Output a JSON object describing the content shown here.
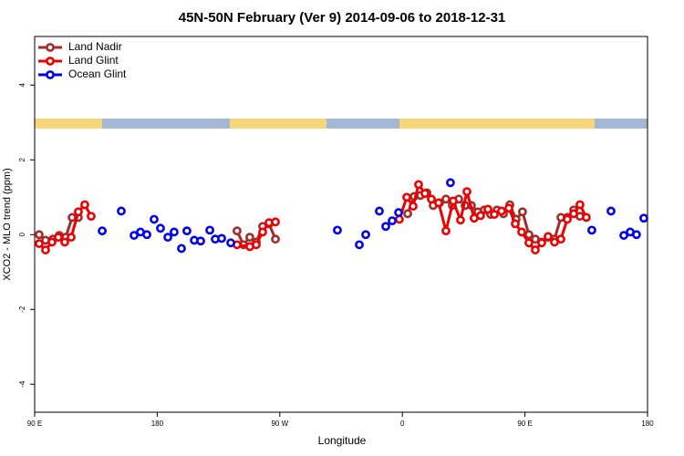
{
  "chart_data": {
    "type": "line",
    "title": "45N-50N February (Ver 9)   2014-09-06 to 2018-12-31",
    "xlabel": "Longitude",
    "ylabel": "XCO2 - MLO trend (ppm)",
    "xlim": [
      90,
      540
    ],
    "ylim": [
      -4.75,
      5.3
    ],
    "xticks": [
      {
        "value": 90,
        "label": "90 E"
      },
      180,
      {
        "value": 270,
        "label": "90 W"
      },
      {
        "value": 360,
        "label": "0"
      },
      {
        "value": 450,
        "label": "90 E"
      },
      {
        "value": 540,
        "label": "180"
      }
    ],
    "yticks": [
      -4,
      -2,
      0,
      2,
      4
    ],
    "legend": "top-left",
    "series": [
      {
        "name": "Land Nadir",
        "color": "#a52a2a",
        "line": true,
        "x": [
          93.3,
          98.0,
          103.4,
          108.1,
          112.8,
          117.5,
          122.1,
          null,
          238.6,
          243.3,
          248.0,
          252.7,
          257.4,
          262.1,
          266.8,
          null,
          363.9,
          368.6,
          373.3,
          378.0,
          382.6,
          387.3,
          392.0,
          396.7,
          401.4,
          406.1,
          410.7,
          415.4,
          420.1,
          424.8,
          429.5,
          434.2,
          438.9,
          443.5,
          448.2,
          452.9,
          457.6,
          462.3,
          467.0,
          471.7,
          476.4,
          481.1,
          485.8,
          490.4
        ],
        "values": [
          0,
          -0.15,
          -0.12,
          -0.02,
          -0.07,
          0.46,
          0.46,
          null,
          0.1,
          -0.27,
          -0.07,
          -0.2,
          0.22,
          0.29,
          -0.12,
          null,
          0.56,
          1.02,
          1.05,
          1.12,
          0.78,
          0.85,
          0.95,
          0.78,
          0.95,
          0.78,
          0.78,
          0.61,
          0.66,
          0.54,
          0.66,
          0.56,
          0.8,
          0.41,
          0.61,
          0,
          -0.12,
          -0.2,
          -0.07,
          -0.12,
          0.46,
          0.46,
          0.66,
          0.49
        ]
      },
      {
        "name": "Land Glint",
        "color": "#ee0000",
        "line": true,
        "x": [
          93.3,
          98.0,
          102.7,
          107.4,
          112.1,
          116.8,
          122.1,
          126.8,
          131.5,
          null,
          238.6,
          248.0,
          252.7,
          257.4,
          262.1,
          266.8,
          null,
          357.8,
          363.2,
          367.9,
          371.9,
          376.6,
          381.3,
          386.6,
          392.0,
          397.3,
          402.7,
          407.4,
          412.7,
          417.4,
          422.8,
          427.5,
          432.8,
          438.2,
          442.9,
          447.6,
          452.9,
          457.6,
          462.3,
          467.0,
          471.7,
          476.4,
          481.1,
          485.8,
          490.4,
          495.1
        ],
        "values": [
          -0.24,
          -0.41,
          -0.2,
          -0.07,
          -0.2,
          -0.07,
          0.61,
          0.8,
          0.49,
          null,
          -0.27,
          -0.32,
          -0.27,
          0.07,
          0.32,
          0.34,
          null,
          0.41,
          1.0,
          0.76,
          1.34,
          1.1,
          0.95,
          0.85,
          0.1,
          0.9,
          0.39,
          1.15,
          0.44,
          0.51,
          0.68,
          0.54,
          0.63,
          0.71,
          0.29,
          0.07,
          -0.22,
          -0.41,
          -0.22,
          -0.05,
          -0.2,
          -0.12,
          0.41,
          0.56,
          0.8,
          0.46
        ]
      },
      {
        "name": "Ocean Glint",
        "color": "#0000ee",
        "line": false,
        "x": [
          139.6,
          153.6,
          163.0,
          167.7,
          172.4,
          177.7,
          182.4,
          187.8,
          192.4,
          197.8,
          201.8,
          207.2,
          211.9,
          218.6,
          222.6,
          227.3,
          234.0,
          312.3,
          328.4,
          333.1,
          343.1,
          347.8,
          352.5,
          357.2,
          395.3,
          499.1,
          513.2,
          522.6,
          527.3,
          531.9,
          537.3
        ],
        "values": [
          0.1,
          0.63,
          -0.02,
          0.07,
          0,
          0.41,
          0.17,
          -0.07,
          0.07,
          -0.37,
          0.1,
          -0.15,
          -0.17,
          0.12,
          -0.12,
          -0.1,
          -0.22,
          0.12,
          -0.27,
          0,
          0.63,
          0.22,
          0.37,
          0.59,
          1.39,
          0.12,
          0.63,
          -0.02,
          0.07,
          0,
          0.44
        ]
      }
    ]
  }
}
